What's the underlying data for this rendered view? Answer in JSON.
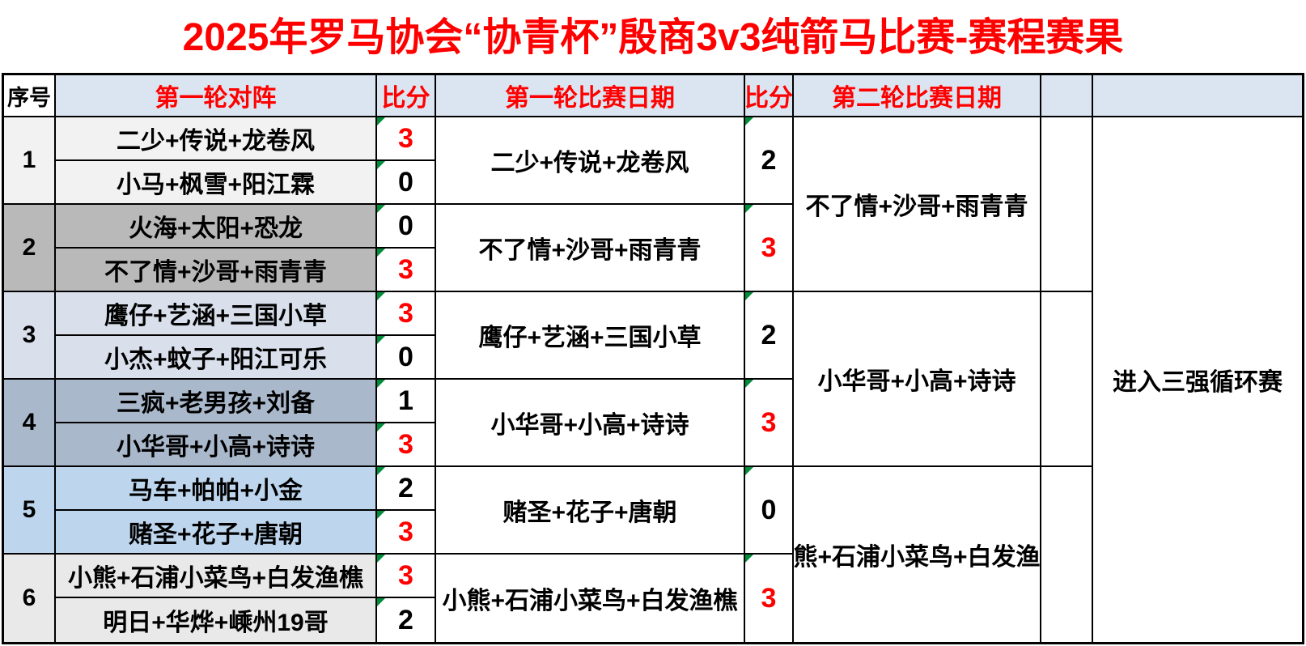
{
  "title": {
    "text": "2025年罗马协会“协青杯”殷商3v3纯箭马比赛-赛程赛果",
    "color": "#ff0000"
  },
  "colors": {
    "header_bg": "#dbe5f1",
    "header_text": "#ff0000",
    "seq_header_text": "#000000",
    "win_score": "#ff0000",
    "lose_score": "#000000",
    "corner_marker": "#008c3a",
    "border": "#000000"
  },
  "table": {
    "headers": [
      {
        "label": "序号"
      },
      {
        "label": "第一轮对阵"
      },
      {
        "label": "比分"
      },
      {
        "label": "第一轮比赛日期"
      },
      {
        "label": "比分"
      },
      {
        "label": "第二轮比赛日期"
      },
      {
        "label": ""
      },
      {
        "label": ""
      }
    ],
    "groups": [
      {
        "seq": "1",
        "bg": "#f2f2f2",
        "team_a": "二少+传说+龙卷风",
        "score_a": "3",
        "a_win": true,
        "team_b": "小马+枫雪+阳江霖",
        "score_b": "0",
        "b_win": false
      },
      {
        "seq": "2",
        "bg": "#b9b9b9",
        "team_a": "火海+太阳+恐龙",
        "score_a": "0",
        "a_win": false,
        "team_b": "不了情+沙哥+雨青青",
        "score_b": "3",
        "b_win": true
      },
      {
        "seq": "3",
        "bg": "#d9e0ec",
        "team_a": "鹰仔+艺涵+三国小草",
        "score_a": "3",
        "a_win": true,
        "team_b": "小杰+蚊子+阳江可乐",
        "score_b": "0",
        "b_win": false
      },
      {
        "seq": "4",
        "bg": "#aab8cc",
        "team_a": "三疯+老男孩+刘备",
        "score_a": "1",
        "a_win": false,
        "team_b": "小华哥+小高+诗诗",
        "score_b": "3",
        "b_win": true
      },
      {
        "seq": "5",
        "bg": "#bdd6ee",
        "team_a": "马车+帕帕+小金",
        "score_a": "2",
        "a_win": false,
        "team_b": "赌圣+花子+唐朝",
        "score_b": "3",
        "b_win": true
      },
      {
        "seq": "6",
        "bg": "#e9e9e9",
        "team_a": "小熊+石浦小菜鸟+白发渔樵",
        "score_a": "3",
        "a_win": true,
        "team_b": "明日+华烨+嵊州19哥",
        "score_b": "2",
        "b_win": false
      }
    ],
    "round2": [
      {
        "team": "二少+传说+龙卷风",
        "score": "2",
        "win": false
      },
      {
        "team": "不了情+沙哥+雨青青",
        "score": "3",
        "win": true
      },
      {
        "team": "鹰仔+艺涵+三国小草",
        "score": "2",
        "win": false
      },
      {
        "team": "小华哥+小高+诗诗",
        "score": "3",
        "win": true
      },
      {
        "team": "赌圣+花子+唐朝",
        "score": "0",
        "win": false
      },
      {
        "team": "小熊+石浦小菜鸟+白发渔樵",
        "score": "3",
        "win": true
      }
    ],
    "winners": [
      "不了情+沙哥+雨青青",
      "小华哥+小高+诗诗",
      "小熊+石浦小菜鸟+白发渔樵"
    ],
    "advance_note": "进入三强循环赛"
  }
}
